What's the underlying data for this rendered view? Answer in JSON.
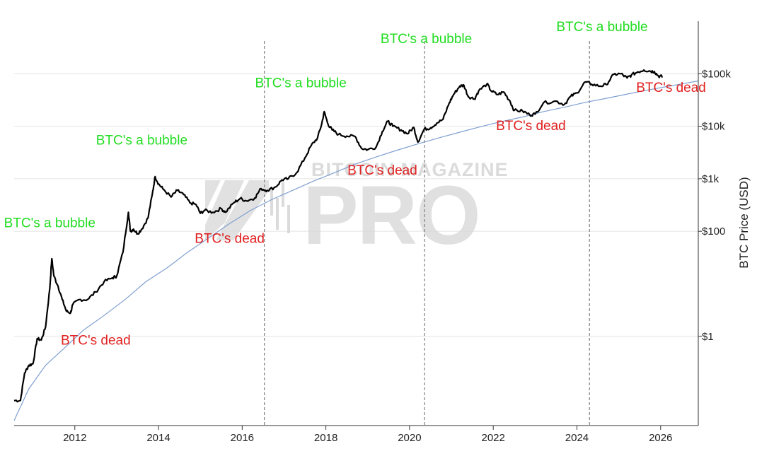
{
  "watermark": {
    "line1": "BITCOIN MAGAZINE",
    "line2": "PRO"
  },
  "chart_data": {
    "type": "line",
    "title": "",
    "xlabel": "",
    "ylabel": "BTC Price (USD)",
    "yscale": "log",
    "xlim": [
      2010.55,
      2026.9
    ],
    "ylim": [
      0.02,
      1000000
    ],
    "x_ticks": [
      {
        "value": 2012,
        "label": "2012"
      },
      {
        "value": 2014,
        "label": "2014"
      },
      {
        "value": 2016,
        "label": "2016"
      },
      {
        "value": 2018,
        "label": "2018"
      },
      {
        "value": 2020,
        "label": "2020"
      },
      {
        "value": 2022,
        "label": "2022"
      },
      {
        "value": 2024,
        "label": "2024"
      },
      {
        "value": 2026,
        "label": "2026"
      }
    ],
    "y_ticks": [
      {
        "value": 1,
        "label": "$1"
      },
      {
        "value": 100,
        "label": "$100"
      },
      {
        "value": 1000,
        "label": "$1k"
      },
      {
        "value": 10000,
        "label": "$10k"
      },
      {
        "value": 100000,
        "label": "$100k"
      }
    ],
    "grid": {
      "y": true,
      "x": false
    },
    "halving_lines": [
      2016.53,
      2020.36,
      2024.3
    ],
    "colors": {
      "price": "#000000",
      "trend": "#7f9fd0",
      "bubble": "#22dd22",
      "dead": "#e02020",
      "halving": "#888888",
      "grid": "#e4e4e4"
    },
    "series": [
      {
        "values": [
          [
            2010.55,
            0.06
          ],
          [
            2010.7,
            0.06
          ],
          [
            2010.8,
            0.2
          ],
          [
            2010.9,
            0.28
          ],
          [
            2011.0,
            0.3
          ],
          [
            2011.1,
            0.9
          ],
          [
            2011.2,
            0.85
          ],
          [
            2011.3,
            1.5
          ],
          [
            2011.4,
            8
          ],
          [
            2011.45,
            30
          ],
          [
            2011.5,
            14
          ],
          [
            2011.6,
            9
          ],
          [
            2011.7,
            5
          ],
          [
            2011.8,
            3
          ],
          [
            2011.9,
            2.8
          ],
          [
            2011.95,
            4
          ],
          [
            2012.1,
            5
          ],
          [
            2012.3,
            5
          ],
          [
            2012.5,
            7
          ],
          [
            2012.7,
            11
          ],
          [
            2012.9,
            13
          ],
          [
            2013.0,
            14
          ],
          [
            2013.15,
            40
          ],
          [
            2013.28,
            230
          ],
          [
            2013.33,
            100
          ],
          [
            2013.4,
            110
          ],
          [
            2013.5,
            90
          ],
          [
            2013.6,
            110
          ],
          [
            2013.75,
            180
          ],
          [
            2013.85,
            500
          ],
          [
            2013.92,
            1100
          ],
          [
            2014.0,
            800
          ],
          [
            2014.1,
            650
          ],
          [
            2014.3,
            450
          ],
          [
            2014.45,
            600
          ],
          [
            2014.6,
            500
          ],
          [
            2014.75,
            350
          ],
          [
            2014.9,
            320
          ],
          [
            2015.0,
            220
          ],
          [
            2015.1,
            250
          ],
          [
            2015.3,
            230
          ],
          [
            2015.5,
            270
          ],
          [
            2015.6,
            230
          ],
          [
            2015.8,
            350
          ],
          [
            2015.95,
            420
          ],
          [
            2016.1,
            380
          ],
          [
            2016.3,
            430
          ],
          [
            2016.45,
            650
          ],
          [
            2016.6,
            600
          ],
          [
            2016.8,
            700
          ],
          [
            2016.95,
            950
          ],
          [
            2017.1,
            1000
          ],
          [
            2017.3,
            1300
          ],
          [
            2017.5,
            2500
          ],
          [
            2017.65,
            4300
          ],
          [
            2017.8,
            6000
          ],
          [
            2017.9,
            11000
          ],
          [
            2017.96,
            19000
          ],
          [
            2018.05,
            11000
          ],
          [
            2018.15,
            8500
          ],
          [
            2018.3,
            7000
          ],
          [
            2018.5,
            6500
          ],
          [
            2018.7,
            6400
          ],
          [
            2018.85,
            3800
          ],
          [
            2019.0,
            3600
          ],
          [
            2019.2,
            4000
          ],
          [
            2019.35,
            8000
          ],
          [
            2019.48,
            12500
          ],
          [
            2019.6,
            10000
          ],
          [
            2019.8,
            8500
          ],
          [
            2019.95,
            7200
          ],
          [
            2020.1,
            9500
          ],
          [
            2020.2,
            5000
          ],
          [
            2020.35,
            8800
          ],
          [
            2020.5,
            9300
          ],
          [
            2020.65,
            11500
          ],
          [
            2020.8,
            13500
          ],
          [
            2020.95,
            28000
          ],
          [
            2021.05,
            40000
          ],
          [
            2021.2,
            58000
          ],
          [
            2021.3,
            60000
          ],
          [
            2021.4,
            37000
          ],
          [
            2021.55,
            33000
          ],
          [
            2021.65,
            47000
          ],
          [
            2021.85,
            64000
          ],
          [
            2021.95,
            47000
          ],
          [
            2022.1,
            40000
          ],
          [
            2022.25,
            45000
          ],
          [
            2022.4,
            30000
          ],
          [
            2022.5,
            20000
          ],
          [
            2022.7,
            19500
          ],
          [
            2022.87,
            16500
          ],
          [
            2023.0,
            17000
          ],
          [
            2023.2,
            28000
          ],
          [
            2023.5,
            30000
          ],
          [
            2023.7,
            26000
          ],
          [
            2023.85,
            37000
          ],
          [
            2024.0,
            43000
          ],
          [
            2024.2,
            70000
          ],
          [
            2024.35,
            63000
          ],
          [
            2024.55,
            58000
          ],
          [
            2024.7,
            62000
          ],
          [
            2024.88,
            97000
          ],
          [
            2025.05,
            100000
          ],
          [
            2025.2,
            83000
          ],
          [
            2025.3,
            94000
          ],
          [
            2025.45,
            108000
          ],
          [
            2025.6,
            118000
          ],
          [
            2025.75,
            112000
          ],
          [
            2025.85,
            110000
          ],
          [
            2025.95,
            90000
          ],
          [
            2026.05,
            88000
          ]
        ]
      },
      {
        "type": "trendline",
        "values": [
          [
            2010.55,
            0.025
          ],
          [
            2010.9,
            0.1
          ],
          [
            2011.3,
            0.28
          ],
          [
            2011.8,
            0.65
          ],
          [
            2012.2,
            1.3
          ],
          [
            2012.7,
            2.5
          ],
          [
            2013.2,
            5
          ],
          [
            2013.7,
            11
          ],
          [
            2014.2,
            20
          ],
          [
            2014.7,
            40
          ],
          [
            2015.2,
            75
          ],
          [
            2015.7,
            140
          ],
          [
            2016.2,
            250
          ],
          [
            2016.7,
            400
          ],
          [
            2017.2,
            600
          ],
          [
            2017.7,
            900
          ],
          [
            2018.2,
            1300
          ],
          [
            2018.7,
            1900
          ],
          [
            2019.2,
            2600
          ],
          [
            2019.7,
            3500
          ],
          [
            2020.2,
            4600
          ],
          [
            2020.7,
            6000
          ],
          [
            2021.2,
            7700
          ],
          [
            2021.7,
            9800
          ],
          [
            2022.2,
            12300
          ],
          [
            2022.7,
            15000
          ],
          [
            2023.2,
            19000
          ],
          [
            2023.7,
            23000
          ],
          [
            2024.2,
            28500
          ],
          [
            2024.7,
            34000
          ],
          [
            2025.2,
            41000
          ],
          [
            2025.7,
            49000
          ],
          [
            2026.2,
            58000
          ],
          [
            2026.6,
            66000
          ],
          [
            2026.9,
            73000
          ]
        ]
      }
    ],
    "annotations": [
      {
        "text": "BTC's a bubble",
        "kind": "bubble",
        "x": 2011.4,
        "y": 120
      },
      {
        "text": "BTC's a bubble",
        "kind": "bubble",
        "x": 2013.6,
        "y": 4500
      },
      {
        "text": "BTC's a bubble",
        "kind": "bubble",
        "x": 2017.4,
        "y": 55000
      },
      {
        "text": "BTC's a bubble",
        "kind": "bubble",
        "x": 2020.4,
        "y": 380000
      },
      {
        "text": "BTC's a bubble",
        "kind": "bubble",
        "x": 2024.6,
        "y": 650000
      },
      {
        "text": "BTC's dead",
        "kind": "dead",
        "x": 2012.5,
        "y": 0.7
      },
      {
        "text": "BTC's dead",
        "kind": "dead",
        "x": 2015.7,
        "y": 60
      },
      {
        "text": "BTC's dead",
        "kind": "dead",
        "x": 2019.35,
        "y": 1200
      },
      {
        "text": "BTC's dead",
        "kind": "dead",
        "x": 2022.9,
        "y": 8500
      },
      {
        "text": "BTC's dead",
        "kind": "dead",
        "x": 2026.25,
        "y": 45000
      }
    ]
  }
}
